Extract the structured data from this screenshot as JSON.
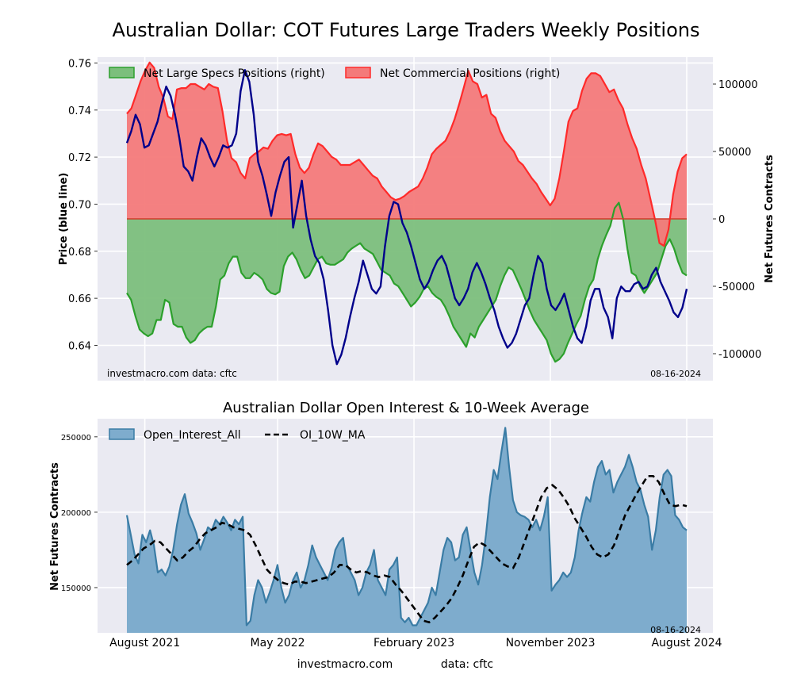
{
  "figure": {
    "footer_site": "investmacro.com",
    "footer_source": "data: cftc"
  },
  "chart_data": [
    {
      "type": "area",
      "title": "Australian Dollar: COT Futures Large Traders Weekly Positions",
      "ylabel_left": "Price (blue line)",
      "ylabel_right": "Net Futures Contracts",
      "ylim_left": [
        0.625,
        0.7625
      ],
      "ylim_right": [
        -120000,
        120000
      ],
      "left_ticks": [
        "0.64",
        "0.66",
        "0.68",
        "0.70",
        "0.72",
        "0.74",
        "0.76"
      ],
      "left_tick_values": [
        0.64,
        0.66,
        0.68,
        0.7,
        0.72,
        0.74,
        0.76
      ],
      "right_ticks": [
        "-100000",
        "-50000",
        "0",
        "50000",
        "100000"
      ],
      "right_tick_values": [
        -100000,
        -50000,
        0,
        50000,
        100000
      ],
      "grid": true,
      "legend_placement": "top-left",
      "annotation_left": "investmacro.com   data: cftc",
      "annotation_right": "08-16-2024",
      "x_domain": [
        0,
        156
      ],
      "series": [
        {
          "name": "Net Large Specs Positions (right)",
          "kind": "area",
          "axis": "right",
          "color": "#2ca02c",
          "fill": "#7cbf7c",
          "values": [
            -55000,
            -60000,
            -72000,
            -82000,
            -85000,
            -87000,
            -85000,
            -75000,
            -75000,
            -60000,
            -62000,
            -78000,
            -80000,
            -80000,
            -88000,
            -92000,
            -90000,
            -85000,
            -82000,
            -80000,
            -80000,
            -65000,
            -45000,
            -42000,
            -33000,
            -28000,
            -28000,
            -40000,
            -44000,
            -44000,
            -40000,
            -42000,
            -45000,
            -52000,
            -55000,
            -56000,
            -54000,
            -35000,
            -28000,
            -25000,
            -30000,
            -38000,
            -44000,
            -42000,
            -36000,
            -30000,
            -28000,
            -33000,
            -34000,
            -34000,
            -32000,
            -30000,
            -25000,
            -22000,
            -20000,
            -18000,
            -22000,
            -24000,
            -26000,
            -32000,
            -38000,
            -40000,
            -42000,
            -48000,
            -50000,
            -55000,
            -60000,
            -65000,
            -62000,
            -58000,
            -52000,
            -50000,
            -55000,
            -58000,
            -60000,
            -65000,
            -72000,
            -80000,
            -85000,
            -90000,
            -95000,
            -85000,
            -88000,
            -80000,
            -75000,
            -70000,
            -65000,
            -60000,
            -50000,
            -42000,
            -36000,
            -38000,
            -45000,
            -52000,
            -60000,
            -68000,
            -75000,
            -80000,
            -85000,
            -90000,
            -100000,
            -106000,
            -104000,
            -100000,
            -92000,
            -85000,
            -78000,
            -72000,
            -60000,
            -50000,
            -45000,
            -30000,
            -20000,
            -12000,
            -5000,
            8000,
            12000,
            0,
            -22000,
            -40000,
            -42000,
            -50000,
            -55000,
            -50000,
            -45000,
            -40000,
            -30000,
            -20000,
            -15000,
            -22000,
            -32000,
            -40000,
            -42000
          ]
        },
        {
          "name": "Net Commercial Positions (right)",
          "kind": "area",
          "axis": "right",
          "color": "#ff2a2a",
          "fill": "#f47a7a",
          "values": [
            78000,
            82000,
            92000,
            102000,
            110000,
            116000,
            112000,
            98000,
            90000,
            76000,
            74000,
            96000,
            97000,
            97000,
            100000,
            100000,
            98000,
            96000,
            100000,
            98000,
            97000,
            80000,
            58000,
            45000,
            42000,
            34000,
            30000,
            45000,
            48000,
            50000,
            53000,
            52000,
            58000,
            62000,
            63000,
            62000,
            63000,
            48000,
            38000,
            34000,
            38000,
            48000,
            56000,
            54000,
            50000,
            46000,
            44000,
            40000,
            40000,
            40000,
            42000,
            44000,
            40000,
            36000,
            32000,
            30000,
            24000,
            20000,
            16000,
            14000,
            15000,
            17000,
            20000,
            22000,
            24000,
            30000,
            38000,
            48000,
            52000,
            55000,
            58000,
            65000,
            74000,
            85000,
            97000,
            110000,
            102000,
            100000,
            90000,
            92000,
            78000,
            75000,
            65000,
            58000,
            54000,
            50000,
            43000,
            40000,
            35000,
            30000,
            26000,
            20000,
            15000,
            10000,
            15000,
            30000,
            50000,
            72000,
            80000,
            82000,
            95000,
            104000,
            108000,
            108000,
            106000,
            100000,
            94000,
            96000,
            88000,
            82000,
            70000,
            60000,
            52000,
            40000,
            30000,
            15000,
            0,
            -18000,
            -20000,
            -8000,
            18000,
            35000,
            45000,
            48000
          ]
        },
        {
          "name": "Price",
          "kind": "line",
          "axis": "left",
          "color": "#00008b",
          "values": [
            0.726,
            0.731,
            0.738,
            0.734,
            0.724,
            0.725,
            0.73,
            0.735,
            0.743,
            0.75,
            0.746,
            0.738,
            0.728,
            0.716,
            0.714,
            0.71,
            0.72,
            0.728,
            0.725,
            0.72,
            0.716,
            0.72,
            0.725,
            0.724,
            0.725,
            0.73,
            0.748,
            0.757,
            0.752,
            0.738,
            0.718,
            0.712,
            0.704,
            0.695,
            0.705,
            0.712,
            0.718,
            0.72,
            0.69,
            0.7,
            0.71,
            0.695,
            0.685,
            0.678,
            0.675,
            0.668,
            0.655,
            0.64,
            0.632,
            0.636,
            0.643,
            0.652,
            0.66,
            0.667,
            0.676,
            0.67,
            0.664,
            0.662,
            0.665,
            0.682,
            0.695,
            0.701,
            0.7,
            0.692,
            0.688,
            0.682,
            0.675,
            0.668,
            0.664,
            0.667,
            0.672,
            0.676,
            0.678,
            0.674,
            0.667,
            0.66,
            0.657,
            0.66,
            0.664,
            0.671,
            0.675,
            0.671,
            0.666,
            0.66,
            0.655,
            0.648,
            0.643,
            0.639,
            0.641,
            0.645,
            0.651,
            0.657,
            0.66,
            0.67,
            0.678,
            0.675,
            0.664,
            0.657,
            0.655,
            0.658,
            0.662,
            0.655,
            0.648,
            0.643,
            0.641,
            0.648,
            0.659,
            0.664,
            0.664,
            0.656,
            0.652,
            0.643,
            0.66,
            0.665,
            0.663,
            0.663,
            0.666,
            0.667,
            0.664,
            0.665,
            0.67,
            0.673,
            0.667,
            0.663,
            0.659,
            0.654,
            0.652,
            0.656,
            0.664
          ]
        }
      ]
    },
    {
      "type": "area",
      "title": "Australian Dollar Open Interest & 10-Week Average",
      "ylabel": "Net Futures Contracts",
      "ylim": [
        120000,
        262000
      ],
      "y_ticks": [
        "150000",
        "200000",
        "250000"
      ],
      "y_tick_values": [
        150000,
        200000,
        250000
      ],
      "grid": true,
      "legend_placement": "top-left",
      "annotation_right": "08-16-2024",
      "x_tick_labels": [
        "August 2021",
        "May 2022",
        "February 2023",
        "November 2023",
        "August 2024"
      ],
      "x_tick_positions": [
        5,
        42,
        80,
        118,
        156
      ],
      "x_domain": [
        0,
        156
      ],
      "series": [
        {
          "name": "Open_Interest_All",
          "kind": "area",
          "color": "#3a7ca5",
          "fill": "#7eaccd",
          "values": [
            198000,
            185000,
            172000,
            166000,
            185000,
            180000,
            188000,
            178000,
            160000,
            162000,
            158000,
            164000,
            175000,
            192000,
            205000,
            212000,
            199000,
            193000,
            186000,
            175000,
            182000,
            190000,
            188000,
            195000,
            192000,
            197000,
            193000,
            188000,
            195000,
            192000,
            197000,
            125000,
            128000,
            145000,
            155000,
            150000,
            140000,
            147000,
            155000,
            165000,
            150000,
            140000,
            145000,
            155000,
            160000,
            150000,
            155000,
            165000,
            178000,
            170000,
            165000,
            160000,
            155000,
            163000,
            175000,
            180000,
            183000,
            165000,
            160000,
            155000,
            145000,
            150000,
            160000,
            165000,
            175000,
            155000,
            150000,
            145000,
            162000,
            165000,
            170000,
            130000,
            127000,
            130000,
            125000,
            125000,
            130000,
            135000,
            140000,
            150000,
            145000,
            160000,
            175000,
            183000,
            180000,
            168000,
            170000,
            185000,
            190000,
            175000,
            160000,
            152000,
            165000,
            185000,
            210000,
            228000,
            222000,
            240000,
            256000,
            230000,
            208000,
            200000,
            198000,
            197000,
            195000,
            190000,
            195000,
            188000,
            197000,
            210000,
            148000,
            152000,
            155000,
            160000,
            157000,
            160000,
            170000,
            188000,
            200000,
            210000,
            207000,
            220000,
            230000,
            234000,
            225000,
            228000,
            213000,
            220000,
            225000,
            230000,
            238000,
            230000,
            220000,
            215000,
            205000,
            197000,
            175000,
            188000,
            210000,
            225000,
            228000,
            224000,
            198000,
            195000,
            190000,
            188000
          ]
        },
        {
          "name": "OI_10W_MA",
          "kind": "line",
          "dashed": true,
          "color": "#000000",
          "values": [
            165000,
            168000,
            172000,
            176000,
            178000,
            181000,
            180000,
            176000,
            172000,
            168000,
            170000,
            174000,
            177000,
            182000,
            186000,
            188000,
            190000,
            193000,
            192000,
            190000,
            189000,
            188000,
            185000,
            178000,
            170000,
            162000,
            158000,
            155000,
            153000,
            152000,
            154000,
            154000,
            153000,
            154000,
            155000,
            156000,
            157000,
            160000,
            165000,
            165000,
            162000,
            160000,
            161000,
            160000,
            158000,
            157000,
            158000,
            157000,
            152000,
            148000,
            143000,
            138000,
            133000,
            128000,
            127000,
            130000,
            134000,
            138000,
            143000,
            150000,
            158000,
            168000,
            177000,
            180000,
            178000,
            174000,
            170000,
            166000,
            164000,
            163000,
            170000,
            180000,
            190000,
            200000,
            210000,
            216000,
            218000,
            215000,
            210000,
            204000,
            196000,
            190000,
            184000,
            177000,
            172000,
            170000,
            172000,
            178000,
            188000,
            198000,
            205000,
            212000,
            218000,
            224000,
            224000,
            220000,
            212000,
            205000,
            204000,
            205000,
            204000
          ]
        }
      ]
    }
  ]
}
